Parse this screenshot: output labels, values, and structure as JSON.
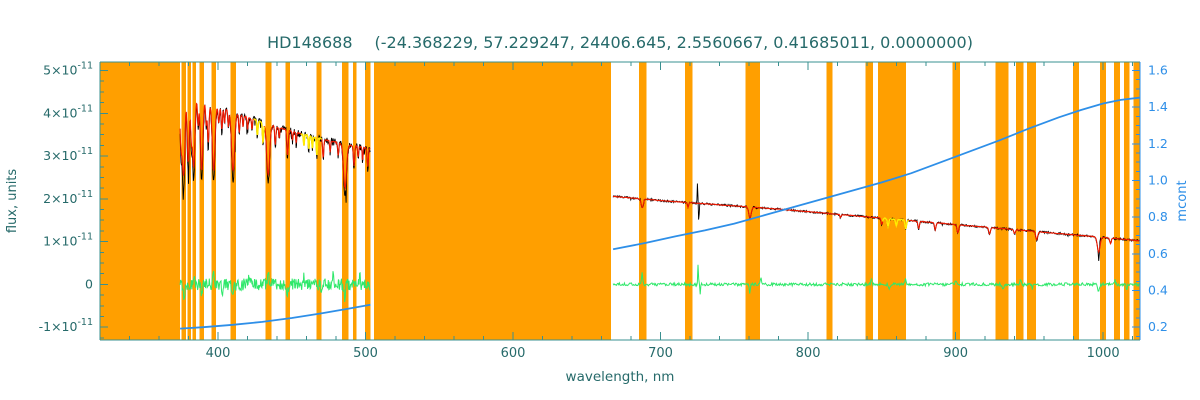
{
  "chart_data": {
    "type": "line",
    "title": {
      "star": "HD148688",
      "params": "(-24.368229, 57.229247, 24406.645, 2.5560667, 0.41685011, 0.0000000)"
    },
    "xlabel": "wavelength, nm",
    "ylabel_left": "flux, units",
    "ylabel_right": "mcont",
    "x_range": [
      320,
      1025
    ],
    "x_major_ticks": [
      400,
      500,
      600,
      700,
      800,
      900,
      1000
    ],
    "x_minor_step": 20,
    "y_left_range": [
      -1.3,
      5.2
    ],
    "y_left_unit": "1e-11",
    "y_left_ticks": [
      {
        "v": 5,
        "t": "5×10",
        "s": "-11"
      },
      {
        "v": 4,
        "t": "4×10",
        "s": "-11"
      },
      {
        "v": 3,
        "t": "3×10",
        "s": "-11"
      },
      {
        "v": 2,
        "t": "2×10",
        "s": "-11"
      },
      {
        "v": 1,
        "t": "1×10",
        "s": "-11"
      },
      {
        "v": 0,
        "t": "0"
      },
      {
        "v": -1,
        "t": "-1×10",
        "s": "-11"
      }
    ],
    "y_right_ticks": [
      0.2,
      0.4,
      0.6,
      0.8,
      1.0,
      1.2,
      1.4,
      1.6
    ],
    "y_right_align": {
      "mcont": [
        0.2,
        1.6
      ],
      "flux": [
        -1,
        5
      ]
    },
    "colors": {
      "frame": "#3a9090",
      "text": "#266a6a",
      "right_axis": "#2e8fe8",
      "mask_band": "#ff9f00",
      "observed": "#000000",
      "model": "#f01800",
      "model_interp": "#ffec00",
      "residual": "#2ee86a",
      "mcont": "#2e8fe8"
    },
    "masked_bands_nm": [
      [
        320,
        374.2
      ],
      [
        375.2,
        378.2
      ],
      [
        379.2,
        381.6
      ],
      [
        382.8,
        385.2
      ],
      [
        387.6,
        390.6
      ],
      [
        395.6,
        398.8
      ],
      [
        408.6,
        412.2
      ],
      [
        432.2,
        436.4
      ],
      [
        445.6,
        448.8
      ],
      [
        466.8,
        470.2
      ],
      [
        484.0,
        488.6
      ],
      [
        491.4,
        493.8
      ],
      [
        499.8,
        503.4
      ],
      [
        505.8,
        666.3
      ],
      [
        685.5,
        690.5
      ],
      [
        716.5,
        721.5
      ],
      [
        757.5,
        767.5
      ],
      [
        812.5,
        816.5
      ],
      [
        839.0,
        844.0
      ],
      [
        847.5,
        866.5
      ],
      [
        898.0,
        903.0
      ],
      [
        927.0,
        936.0
      ],
      [
        941.0,
        946.0
      ],
      [
        948.5,
        954.5
      ],
      [
        979.5,
        983.5
      ],
      [
        998.0,
        1002.0
      ],
      [
        1007.5,
        1011.5
      ],
      [
        1014.0,
        1018.0
      ],
      [
        1020.5,
        1025.0
      ]
    ],
    "yellow_ranges_nm": [
      [
        424.0,
        431.5
      ],
      [
        456.0,
        470.5
      ],
      [
        850.5,
        868.5
      ]
    ],
    "segments": [
      {
        "name": "blue-arm",
        "seed": 42,
        "range": [
          374.3,
          503.3
        ],
        "step": 0.3,
        "noise_obs": 0.08,
        "noise_model": 0.015,
        "res_noise": 0.14,
        "spike_prob": 0.08,
        "spike_amp": 0.45,
        "model_scale": 0.85,
        "continuum": [
          [
            374,
            4.42
          ],
          [
            380,
            4.38
          ],
          [
            385,
            4.33
          ],
          [
            390,
            4.27
          ],
          [
            395,
            4.22
          ],
          [
            400,
            4.15
          ],
          [
            410,
            4.02
          ],
          [
            420,
            3.9
          ],
          [
            430,
            3.79
          ],
          [
            440,
            3.68
          ],
          [
            450,
            3.58
          ],
          [
            460,
            3.48
          ],
          [
            470,
            3.4
          ],
          [
            480,
            3.32
          ],
          [
            490,
            3.25
          ],
          [
            503.3,
            3.17
          ]
        ],
        "lines": [
          [
            375.0,
            1.5,
            0.7
          ],
          [
            376.2,
            1.2,
            0.5
          ],
          [
            377.1,
            1.7,
            0.6
          ],
          [
            379.8,
            1.8,
            0.7
          ],
          [
            381.9,
            1.0,
            0.5
          ],
          [
            383.5,
            1.9,
            0.8
          ],
          [
            386.5,
            0.7,
            0.4
          ],
          [
            388.9,
            1.9,
            0.8
          ],
          [
            392.0,
            0.6,
            0.4
          ],
          [
            393.4,
            1.1,
            0.5
          ],
          [
            397.0,
            1.8,
            0.9
          ],
          [
            400.5,
            0.45,
            0.4
          ],
          [
            402.6,
            0.6,
            0.4
          ],
          [
            404.4,
            0.4,
            0.35
          ],
          [
            407.0,
            0.45,
            0.35
          ],
          [
            410.2,
            1.6,
            1.0
          ],
          [
            414.4,
            0.5,
            0.4
          ],
          [
            417.0,
            0.3,
            0.3
          ],
          [
            420.0,
            0.35,
            0.3
          ],
          [
            423.0,
            0.3,
            0.3
          ],
          [
            426.7,
            0.4,
            0.35
          ],
          [
            430.5,
            0.55,
            0.4
          ],
          [
            434.0,
            1.4,
            1.0
          ],
          [
            438.8,
            0.5,
            0.4
          ],
          [
            441.5,
            0.3,
            0.3
          ],
          [
            447.1,
            0.7,
            0.45
          ],
          [
            450.5,
            0.25,
            0.3
          ],
          [
            453.0,
            0.3,
            0.3
          ],
          [
            458.2,
            0.3,
            0.3
          ],
          [
            461.5,
            0.35,
            0.3
          ],
          [
            464.0,
            0.3,
            0.3
          ],
          [
            467.0,
            0.45,
            0.35
          ],
          [
            471.3,
            0.5,
            0.4
          ],
          [
            476.0,
            0.3,
            0.3
          ],
          [
            481.5,
            0.35,
            0.35
          ],
          [
            486.1,
            1.2,
            1.0
          ],
          [
            492.2,
            0.55,
            0.4
          ],
          [
            495.0,
            0.3,
            0.3
          ],
          [
            498.0,
            0.35,
            0.3
          ],
          [
            501.5,
            0.5,
            0.4
          ]
        ],
        "artifacts": [],
        "res_spikes": [
          [
            377,
            -0.35,
            0.4
          ],
          [
            384,
            0.3,
            0.4
          ],
          [
            389,
            -0.32,
            0.4
          ],
          [
            397,
            0.35,
            0.5
          ],
          [
            403,
            -0.2,
            0.4
          ],
          [
            410,
            -0.3,
            0.5
          ],
          [
            421,
            0.22,
            0.4
          ],
          [
            434,
            0.3,
            0.5
          ],
          [
            447,
            -0.22,
            0.4
          ],
          [
            458,
            0.18,
            0.4
          ],
          [
            470,
            -0.2,
            0.4
          ],
          [
            478,
            0.18,
            0.4
          ],
          [
            486,
            -0.28,
            0.5
          ],
          [
            496,
            0.2,
            0.4
          ]
        ]
      },
      {
        "name": "red-arm",
        "seed": 7,
        "range": [
          667.8,
          1024.6
        ],
        "step": 0.4,
        "noise_obs": 0.025,
        "noise_model": 0.007,
        "res_noise": 0.035,
        "spike_prob": 0.03,
        "spike_amp": 0.1,
        "model_scale": 0.92,
        "continuum": [
          [
            667.8,
            2.06
          ],
          [
            680,
            2.02
          ],
          [
            700,
            1.96
          ],
          [
            720,
            1.91
          ],
          [
            740,
            1.86
          ],
          [
            760,
            1.81
          ],
          [
            780,
            1.76
          ],
          [
            800,
            1.7
          ],
          [
            820,
            1.64
          ],
          [
            840,
            1.58
          ],
          [
            860,
            1.52
          ],
          [
            880,
            1.46
          ],
          [
            900,
            1.4
          ],
          [
            920,
            1.34
          ],
          [
            940,
            1.28
          ],
          [
            960,
            1.22
          ],
          [
            980,
            1.16
          ],
          [
            1000,
            1.1
          ],
          [
            1012,
            1.06
          ],
          [
            1024.6,
            1.02
          ]
        ],
        "lines": [
          [
            687.6,
            0.22,
            0.7
          ],
          [
            718.6,
            0.12,
            0.4
          ],
          [
            760.6,
            0.28,
            0.8
          ],
          [
            822.0,
            0.08,
            0.4
          ],
          [
            850.0,
            0.16,
            0.5
          ],
          [
            854.2,
            0.2,
            0.5
          ],
          [
            859.8,
            0.16,
            0.5
          ],
          [
            866.2,
            0.22,
            0.5
          ],
          [
            875.0,
            0.18,
            0.5
          ],
          [
            886.2,
            0.18,
            0.5
          ],
          [
            901.5,
            0.2,
            0.6
          ],
          [
            923.0,
            0.16,
            0.6
          ],
          [
            940.0,
            0.1,
            0.5
          ],
          [
            955.0,
            0.2,
            0.7
          ],
          [
            997.0,
            0.38,
            0.9
          ],
          [
            1005.0,
            0.14,
            0.5
          ]
        ],
        "artifacts": [
          [
            725.5,
            0.5
          ],
          [
            997.5,
            -0.2
          ]
        ],
        "res_spikes": [
          [
            687.5,
            0.28,
            0.35
          ],
          [
            725.5,
            0.5,
            0.25
          ],
          [
            726.9,
            -0.22,
            0.25
          ],
          [
            760.5,
            -0.22,
            0.4
          ],
          [
            768.0,
            0.15,
            0.3
          ],
          [
            843.0,
            0.12,
            0.4
          ],
          [
            855.0,
            -0.12,
            0.5
          ],
          [
            866.0,
            0.14,
            0.4
          ],
          [
            900.0,
            0.1,
            0.4
          ],
          [
            932.0,
            -0.14,
            0.5
          ],
          [
            944.0,
            0.12,
            0.4
          ],
          [
            952.0,
            -0.1,
            0.4
          ],
          [
            997.0,
            -0.18,
            0.5
          ],
          [
            1008.0,
            0.12,
            0.4
          ],
          [
            1016.0,
            -0.12,
            0.4
          ]
        ]
      }
    ],
    "mcont_curve": [
      [
        [
          374.3,
          0.192
        ],
        [
          390,
          0.2
        ],
        [
          410,
          0.213
        ],
        [
          430,
          0.229
        ],
        [
          450,
          0.25
        ],
        [
          470,
          0.275
        ],
        [
          490,
          0.303
        ],
        [
          503.3,
          0.322
        ]
      ],
      [
        [
          667.8,
          0.625
        ],
        [
          690,
          0.66
        ],
        [
          710,
          0.695
        ],
        [
          730,
          0.728
        ],
        [
          750,
          0.765
        ],
        [
          770,
          0.81
        ],
        [
          790,
          0.855
        ],
        [
          810,
          0.9
        ],
        [
          830,
          0.945
        ],
        [
          850,
          0.99
        ],
        [
          870,
          1.04
        ],
        [
          890,
          1.1
        ],
        [
          910,
          1.16
        ],
        [
          930,
          1.22
        ],
        [
          950,
          1.285
        ],
        [
          970,
          1.345
        ],
        [
          985,
          1.385
        ],
        [
          1000,
          1.42
        ],
        [
          1012,
          1.44
        ],
        [
          1024.6,
          1.452
        ]
      ]
    ]
  }
}
